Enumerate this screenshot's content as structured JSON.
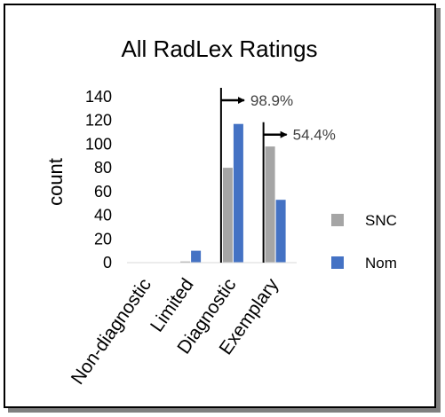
{
  "chart_data": {
    "type": "bar",
    "title": "All RadLex Ratings",
    "xlabel": "",
    "ylabel": "count",
    "categories": [
      "Non-diagnostic",
      "Limited",
      "Diagnostic",
      "Exemplary"
    ],
    "series": [
      {
        "name": "SNC",
        "color": "#a5a5a5",
        "values": [
          0,
          1,
          80,
          98
        ]
      },
      {
        "name": "Nom",
        "color": "#4472c4",
        "values": [
          0,
          10,
          117,
          53
        ]
      }
    ],
    "ylim": [
      0,
      140
    ],
    "yticks": [
      0,
      20,
      40,
      60,
      80,
      100,
      120,
      140
    ],
    "grid": false,
    "legend": "right",
    "annotations": [
      {
        "text": "98.9%",
        "category": "Diagnostic",
        "y": 137
      },
      {
        "text": "54.4%",
        "category": "Exemplary",
        "y": 108
      }
    ]
  }
}
